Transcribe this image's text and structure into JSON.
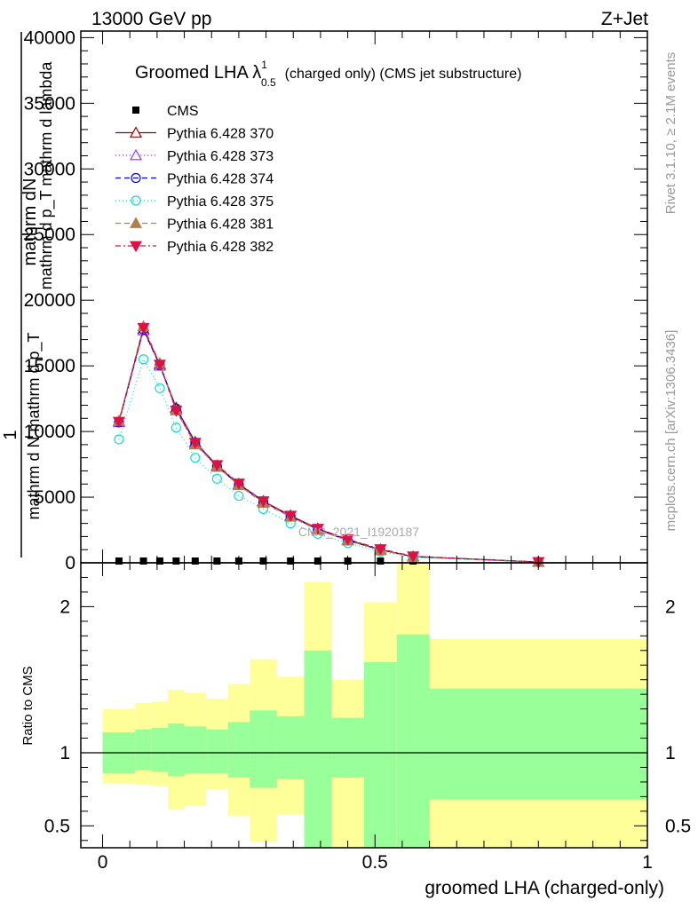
{
  "header": {
    "left": "13000 GeV pp",
    "right": "Z+Jet"
  },
  "side_text": {
    "rivet": "Rivet 3.1.10, ≥ 2.1M events",
    "mcplots": "mcplots.cern.ch [arXiv:1306.3436]"
  },
  "watermark": "CMS_2021_I1920187",
  "colors": {
    "CMS": "#000000",
    "Pythia 6.428 370": "#990000",
    "Pythia 6.428 373": "#9933ff",
    "Pythia 6.428 374": "#0000ee",
    "Pythia 6.428 375": "#11ddcc",
    "Pythia 6.428 381": "#b07f4a",
    "Pythia 6.428 382": "#dd1144",
    "band_inner": "#99ff99",
    "band_outer": "#ffff99"
  },
  "chart_data": [
    {
      "type": "line",
      "title": "Groomed LHA λ",
      "title_sup": "1",
      "title_sub": "0.5",
      "title_suffix": "(charged only) (CMS jet substructure)",
      "ylabel": "1 / mathrm d N  mathrm d p_T mathrm d lambda  mathrm d^2 N / mathrm d p_T",
      "ylabel_lines": [
        "mathrm dN",
        "mathrm d p_T  mathrm d lambda",
        "1",
        "mathrm d N  mathrm d p_T"
      ],
      "xlim": [
        -0.04,
        1.0
      ],
      "ylim": [
        0,
        40500
      ],
      "yticks": [
        0,
        5000,
        10000,
        15000,
        20000,
        25000,
        30000,
        35000,
        40000
      ],
      "ytick_labels": [
        "0",
        "5000",
        "10000",
        "15000",
        "20000",
        "25000",
        "30000",
        "35000",
        "40000"
      ],
      "legend_position": "top-left",
      "x": [
        0.03,
        0.075,
        0.105,
        0.135,
        0.17,
        0.21,
        0.25,
        0.295,
        0.345,
        0.395,
        0.45,
        0.51,
        0.57,
        0.8
      ],
      "series": [
        {
          "name": "CMS",
          "marker": "square",
          "dash": "none",
          "values": [
            50,
            50,
            50,
            50,
            50,
            50,
            50,
            50,
            50,
            50,
            50,
            50,
            20,
            5
          ]
        },
        {
          "name": "Pythia 6.428 370",
          "marker": "triangle-open",
          "dash": "none",
          "values": [
            10800,
            17800,
            15100,
            11800,
            9200,
            7400,
            6000,
            4700,
            3600,
            2600,
            1750,
            1000,
            480,
            60
          ]
        },
        {
          "name": "Pythia 6.428 373",
          "marker": "triangle-open",
          "dash": "1,3",
          "values": [
            10700,
            17700,
            15000,
            11700,
            9100,
            7300,
            5950,
            4650,
            3550,
            2550,
            1700,
            980,
            470,
            60
          ]
        },
        {
          "name": "Pythia 6.428 374",
          "marker": "circle-open",
          "dash": "6,4",
          "values": [
            10700,
            17750,
            15050,
            11750,
            9150,
            7350,
            5950,
            4650,
            3550,
            2550,
            1700,
            990,
            475,
            60
          ]
        },
        {
          "name": "Pythia 6.428 375",
          "marker": "circle-open",
          "dash": "1,3",
          "values": [
            9400,
            15500,
            13300,
            10300,
            8000,
            6400,
            5100,
            4100,
            3000,
            2200,
            1500,
            850,
            400,
            50
          ]
        },
        {
          "name": "Pythia 6.428 381",
          "marker": "triangle-filled",
          "dash": "6,4",
          "values": [
            10800,
            18000,
            15200,
            11600,
            9000,
            7350,
            5900,
            4550,
            3500,
            2500,
            1700,
            950,
            460,
            55
          ]
        },
        {
          "name": "Pythia 6.428 382",
          "marker": "triangle-down-filled",
          "dash": "6,3,2,3",
          "values": [
            10750,
            17900,
            15100,
            11600,
            9150,
            7450,
            6050,
            4700,
            3600,
            2600,
            1800,
            1050,
            500,
            65
          ]
        }
      ]
    },
    {
      "type": "area",
      "ylabel": "Ratio to CMS",
      "xlabel": "groomed LHA (charged-only)",
      "xlim": [
        -0.04,
        1.0
      ],
      "ylim": [
        0.35,
        2.3
      ],
      "xticks": [
        0,
        0.5,
        1
      ],
      "xtick_labels": [
        "0",
        "0.5",
        "1"
      ],
      "yticks": [
        0.5,
        1,
        2
      ],
      "ytick_labels": [
        "0.5",
        "1",
        "2"
      ],
      "bins": [
        {
          "lo": 0.0,
          "hi": 0.06,
          "inner": [
            0.86,
            1.14
          ],
          "outer": [
            0.79,
            1.3
          ]
        },
        {
          "lo": 0.06,
          "hi": 0.09,
          "inner": [
            0.88,
            1.16
          ],
          "outer": [
            0.78,
            1.34
          ]
        },
        {
          "lo": 0.09,
          "hi": 0.12,
          "inner": [
            0.87,
            1.17
          ],
          "outer": [
            0.77,
            1.35
          ]
        },
        {
          "lo": 0.12,
          "hi": 0.15,
          "inner": [
            0.84,
            1.2
          ],
          "outer": [
            0.61,
            1.43
          ]
        },
        {
          "lo": 0.15,
          "hi": 0.19,
          "inner": [
            0.86,
            1.18
          ],
          "outer": [
            0.64,
            1.41
          ]
        },
        {
          "lo": 0.19,
          "hi": 0.23,
          "inner": [
            0.86,
            1.16
          ],
          "outer": [
            0.75,
            1.37
          ]
        },
        {
          "lo": 0.23,
          "hi": 0.27,
          "inner": [
            0.83,
            1.21
          ],
          "outer": [
            0.57,
            1.47
          ]
        },
        {
          "lo": 0.27,
          "hi": 0.32,
          "inner": [
            0.76,
            1.29
          ],
          "outer": [
            0.39,
            1.64
          ]
        },
        {
          "lo": 0.32,
          "hi": 0.37,
          "inner": [
            0.82,
            1.25
          ],
          "outer": [
            0.58,
            1.52
          ]
        },
        {
          "lo": 0.37,
          "hi": 0.42,
          "inner": [
            0.35,
            1.7
          ],
          "outer": [
            0.35,
            2.17
          ]
        },
        {
          "lo": 0.42,
          "hi": 0.48,
          "inner": [
            0.83,
            1.24
          ],
          "outer": [
            0.35,
            1.5
          ]
        },
        {
          "lo": 0.48,
          "hi": 0.54,
          "inner": [
            0.35,
            1.62
          ],
          "outer": [
            0.35,
            2.03
          ]
        },
        {
          "lo": 0.54,
          "hi": 0.6,
          "inner": [
            0.35,
            1.81
          ],
          "outer": [
            0.35,
            2.3
          ]
        },
        {
          "lo": 0.6,
          "hi": 1.0,
          "inner": [
            0.68,
            1.44
          ],
          "outer": [
            0.35,
            1.78
          ]
        }
      ]
    }
  ]
}
